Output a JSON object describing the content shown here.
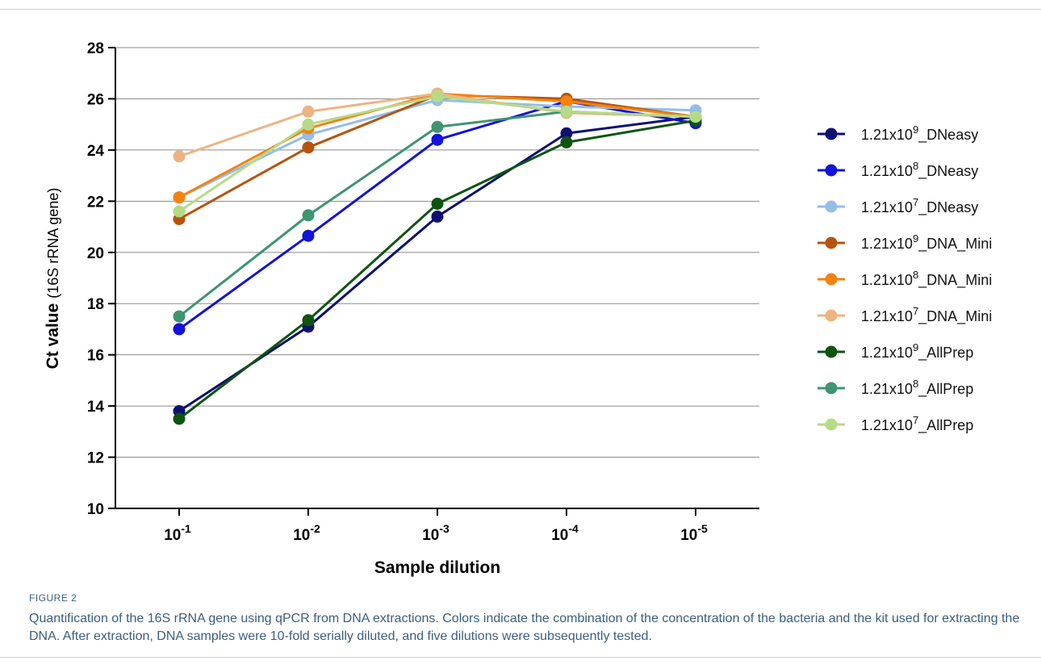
{
  "chart_data": {
    "type": "line",
    "xlabel": "Sample dilution",
    "ylabel": "Ct value",
    "ylabel_sub": "(16S rRNA gene)",
    "ylim": [
      10,
      28
    ],
    "yticks": [
      "10",
      "12",
      "14",
      "16",
      "18",
      "20",
      "22",
      "24",
      "26",
      "28"
    ],
    "categories": [
      {
        "base": "10",
        "exp": "-1"
      },
      {
        "base": "10",
        "exp": "-2"
      },
      {
        "base": "10",
        "exp": "-3"
      },
      {
        "base": "10",
        "exp": "-4"
      },
      {
        "base": "10",
        "exp": "-5"
      }
    ],
    "grid": "horizontal",
    "legend_position": "right",
    "series": [
      {
        "label_pre": "1.21x10",
        "label_sup": "9",
        "label_post": "_DNeasy",
        "color": "#0d1070",
        "values": [
          13.8,
          17.1,
          21.4,
          24.65,
          25.3
        ]
      },
      {
        "label_pre": "1.21x10",
        "label_sup": "8",
        "label_post": "_DNeasy",
        "color": "#1212d8",
        "values": [
          17.0,
          20.65,
          24.4,
          25.9,
          25.05
        ]
      },
      {
        "label_pre": "1.21x10",
        "label_sup": "7",
        "label_post": "_DNeasy",
        "color": "#94bde8",
        "values": [
          22.15,
          24.6,
          25.95,
          25.7,
          25.55
        ]
      },
      {
        "label_pre": "1.21x10",
        "label_sup": "9",
        "label_post": "_DNA_Mini",
        "color": "#b5540e",
        "values": [
          21.3,
          24.1,
          26.15,
          26.0,
          25.3
        ]
      },
      {
        "label_pre": "1.21x10",
        "label_sup": "8",
        "label_post": "_DNA_Mini",
        "color": "#f4830f",
        "values": [
          22.15,
          24.85,
          26.2,
          25.9,
          25.3
        ]
      },
      {
        "label_pre": "1.21x10",
        "label_sup": "7",
        "label_post": "_DNA_Mini",
        "color": "#edb483",
        "values": [
          23.75,
          25.5,
          26.2,
          25.45,
          25.3
        ]
      },
      {
        "label_pre": "1.21x10",
        "label_sup": "9",
        "label_post": "_AllPrep",
        "color": "#0e5410",
        "values": [
          13.5,
          17.35,
          21.9,
          24.3,
          25.15
        ]
      },
      {
        "label_pre": "1.21x10",
        "label_sup": "8",
        "label_post": "_AllPrep",
        "color": "#3f9471",
        "values": [
          17.5,
          21.45,
          24.9,
          25.5,
          25.3
        ]
      },
      {
        "label_pre": "1.21x10",
        "label_sup": "7",
        "label_post": "_AllPrep",
        "color": "#b5db87",
        "values": [
          21.6,
          25.0,
          26.1,
          25.5,
          25.3
        ]
      }
    ]
  },
  "caption": {
    "figure_label": "FIGURE 2",
    "text": "Quantification of the 16S rRNA gene using qPCR from DNA extractions. Colors indicate the combination of the concentration of the bacteria and the kit used for extracting the DNA. After extraction, DNA samples were 10-fold serially diluted, and five dilutions were subsequently tested."
  }
}
